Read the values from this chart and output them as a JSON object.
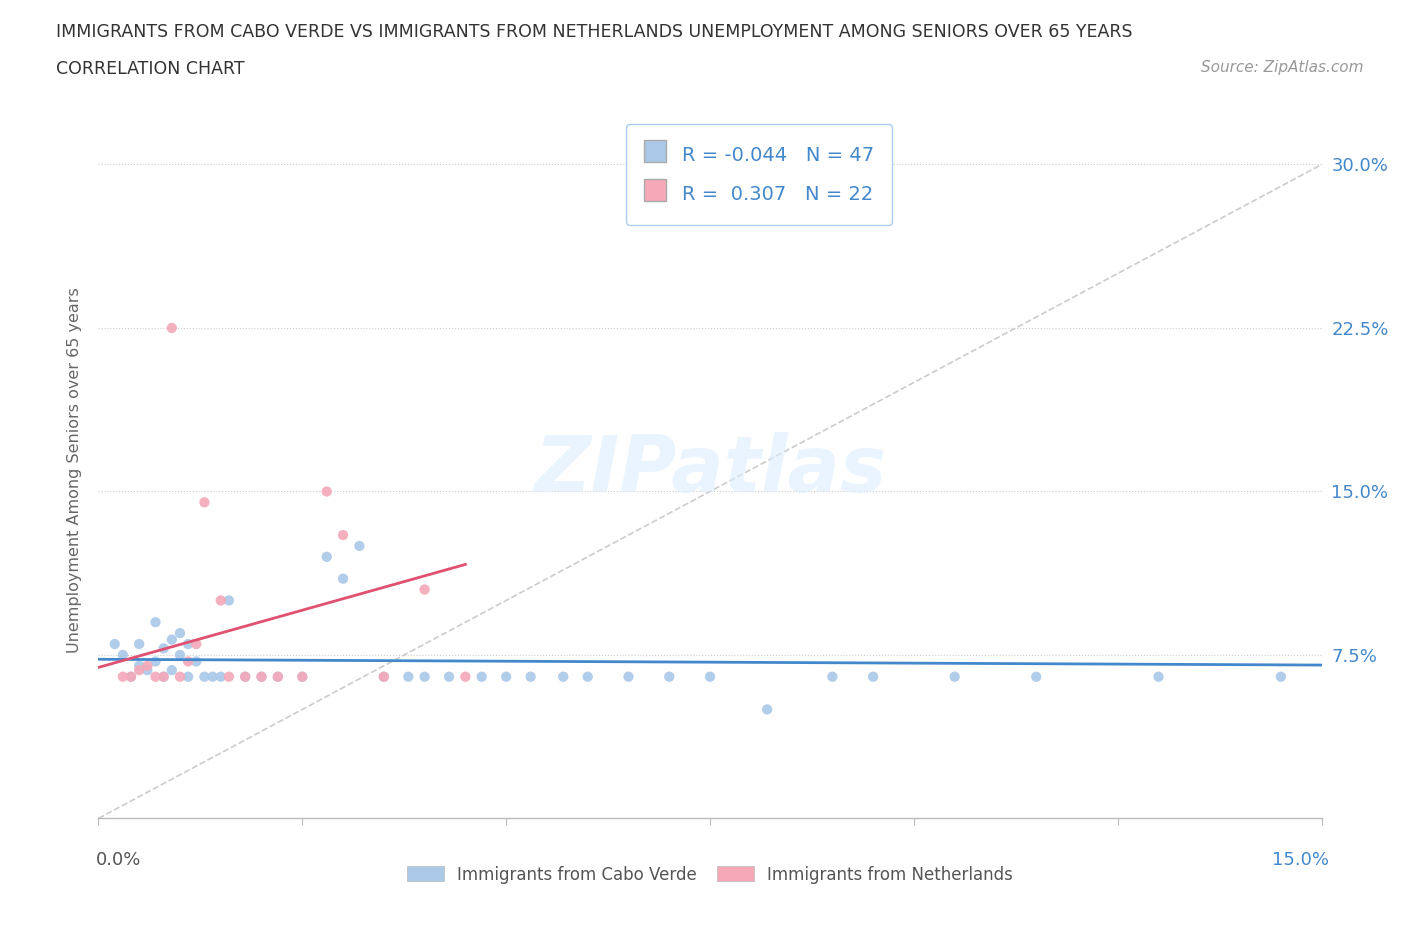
{
  "title_line1": "IMMIGRANTS FROM CABO VERDE VS IMMIGRANTS FROM NETHERLANDS UNEMPLOYMENT AMONG SENIORS OVER 65 YEARS",
  "title_line2": "CORRELATION CHART",
  "source": "Source: ZipAtlas.com",
  "ylabel_label": "Unemployment Among Seniors over 65 years",
  "r_cabo_verde": -0.044,
  "n_cabo_verde": 47,
  "r_netherlands": 0.307,
  "n_netherlands": 22,
  "cabo_verde_color": "#aac8e8",
  "netherlands_color": "#f4a8b8",
  "cabo_verde_line_color": "#4488cc",
  "netherlands_line_color": "#e05070",
  "diagonal_color": "#cccccc",
  "watermark": "ZIPatlas",
  "xlim": [
    0.0,
    0.15
  ],
  "ylim": [
    0.0,
    0.32
  ],
  "y_ticks": [
    0.075,
    0.15,
    0.225,
    0.3
  ],
  "y_tick_labels": [
    "7.5%",
    "15.0%",
    "22.5%",
    "30.0%"
  ],
  "cabo_x": [
    0.002,
    0.003,
    0.004,
    0.005,
    0.005,
    0.006,
    0.007,
    0.007,
    0.008,
    0.008,
    0.009,
    0.009,
    0.01,
    0.01,
    0.011,
    0.011,
    0.012,
    0.013,
    0.014,
    0.015,
    0.016,
    0.018,
    0.02,
    0.022,
    0.025,
    0.028,
    0.03,
    0.032,
    0.035,
    0.038,
    0.04,
    0.043,
    0.047,
    0.05,
    0.053,
    0.057,
    0.06,
    0.065,
    0.07,
    0.075,
    0.082,
    0.09,
    0.095,
    0.105,
    0.115,
    0.13,
    0.145
  ],
  "cabo_y": [
    0.08,
    0.075,
    0.065,
    0.07,
    0.08,
    0.068,
    0.072,
    0.09,
    0.065,
    0.078,
    0.068,
    0.082,
    0.075,
    0.085,
    0.065,
    0.08,
    0.072,
    0.065,
    0.065,
    0.065,
    0.1,
    0.065,
    0.065,
    0.065,
    0.065,
    0.12,
    0.11,
    0.125,
    0.065,
    0.065,
    0.065,
    0.065,
    0.065,
    0.065,
    0.065,
    0.065,
    0.065,
    0.065,
    0.065,
    0.065,
    0.05,
    0.065,
    0.065,
    0.065,
    0.065,
    0.065,
    0.065
  ],
  "neth_x": [
    0.003,
    0.004,
    0.005,
    0.006,
    0.007,
    0.008,
    0.009,
    0.01,
    0.011,
    0.012,
    0.013,
    0.015,
    0.016,
    0.018,
    0.02,
    0.022,
    0.025,
    0.028,
    0.03,
    0.035,
    0.04,
    0.045
  ],
  "neth_y": [
    0.065,
    0.065,
    0.068,
    0.07,
    0.065,
    0.065,
    0.225,
    0.065,
    0.072,
    0.08,
    0.145,
    0.1,
    0.065,
    0.065,
    0.065,
    0.065,
    0.065,
    0.15,
    0.13,
    0.065,
    0.105,
    0.065
  ]
}
